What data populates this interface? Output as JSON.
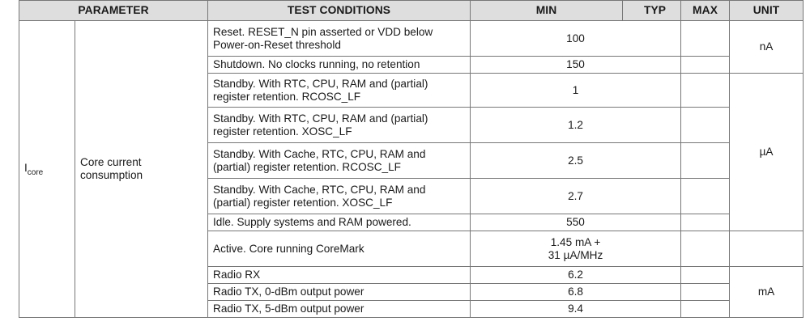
{
  "table": {
    "headers": {
      "parameter": "PARAMETER",
      "test_conditions": "TEST CONDITIONS",
      "min": "MIN",
      "typ": "TYP",
      "max": "MAX",
      "unit": "UNIT"
    },
    "symbol_main": "I",
    "symbol_sub": "core",
    "description": "Core current consumption",
    "rows": [
      {
        "condition": "Reset. RESET_N pin asserted or VDD below\nPower-on-Reset threshold",
        "typ": "100",
        "min": "",
        "max": ""
      },
      {
        "condition": "Shutdown. No clocks running, no retention",
        "typ": "150",
        "min": "",
        "max": ""
      },
      {
        "condition": "Standby. With RTC, CPU, RAM and (partial)\nregister retention. RCOSC_LF",
        "typ": "1",
        "min": "",
        "max": ""
      },
      {
        "condition": "Standby. With RTC, CPU, RAM and (partial)\nregister retention. XOSC_LF",
        "typ": "1.2",
        "min": "",
        "max": ""
      },
      {
        "condition": "Standby. With Cache, RTC, CPU, RAM and\n(partial) register retention. RCOSC_LF",
        "typ": "2.5",
        "min": "",
        "max": ""
      },
      {
        "condition": "Standby. With Cache, RTC, CPU, RAM and\n(partial) register retention. XOSC_LF",
        "typ": "2.7",
        "min": "",
        "max": ""
      },
      {
        "condition": "Idle. Supply systems and RAM powered.",
        "typ": "550",
        "min": "",
        "max": ""
      },
      {
        "condition": "Active. Core running CoreMark",
        "typ": "1.45 mA +\n31 µA/MHz",
        "min": "",
        "max": ""
      },
      {
        "condition": "Radio RX",
        "typ": "6.2",
        "min": "",
        "max": ""
      },
      {
        "condition": "Radio TX, 0-dBm output power",
        "typ": "6.8",
        "min": "",
        "max": ""
      },
      {
        "condition": "Radio TX, 5-dBm output power",
        "typ": "9.4",
        "min": "",
        "max": ""
      }
    ],
    "units": {
      "group1": "nA",
      "group2": "µA",
      "group3": "",
      "group4": "mA"
    }
  }
}
